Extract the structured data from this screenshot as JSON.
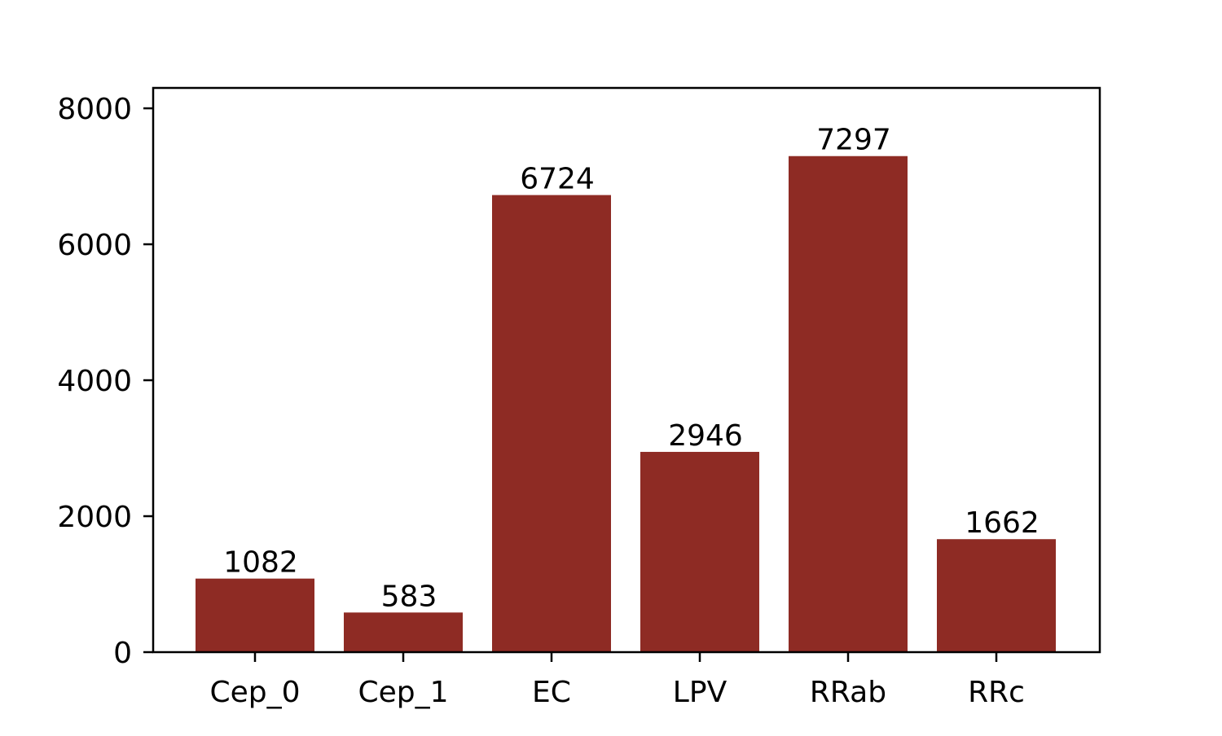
{
  "chart_data": {
    "type": "bar",
    "title": "",
    "xlabel": "",
    "ylabel": "",
    "categories": [
      "Cep_0",
      "Cep_1",
      "EC",
      "LPV",
      "RRab",
      "RRc"
    ],
    "values": [
      1082,
      583,
      6724,
      2946,
      7297,
      1662
    ],
    "ylim": [
      0,
      8300
    ],
    "yticks": [
      0,
      2000,
      4000,
      6000,
      8000
    ],
    "ytick_labels": [
      "0",
      "2000",
      "4000",
      "6000",
      "8000"
    ],
    "grid": false,
    "legend": "none",
    "bar_color": "#8e2b24",
    "show_value_labels": true
  }
}
